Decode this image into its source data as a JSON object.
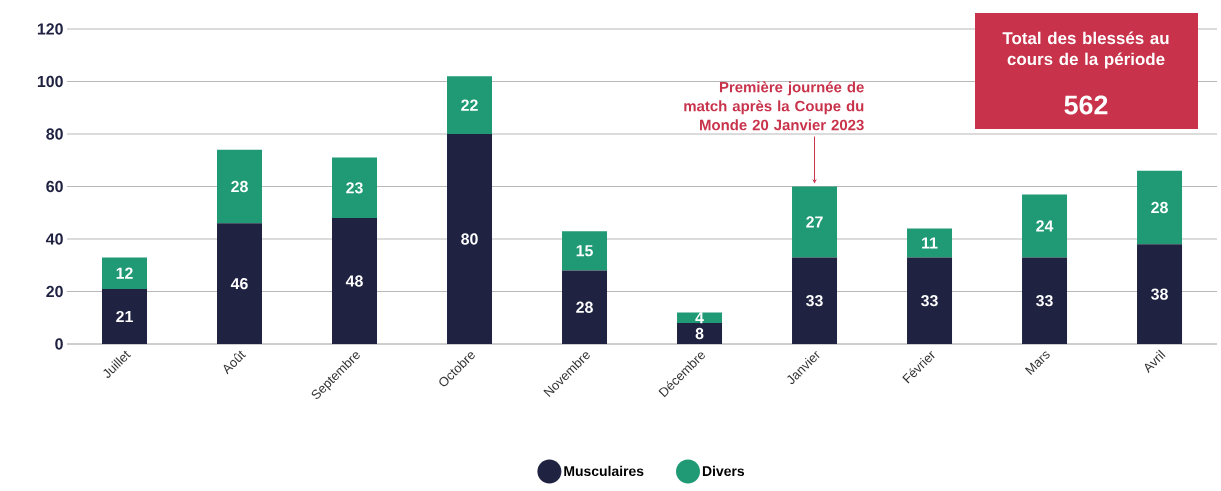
{
  "chart_data": {
    "type": "bar",
    "stacked": true,
    "categories": [
      "Juillet",
      "Août",
      "Septembre",
      "Octobre",
      "Novembre",
      "Décembre",
      "Janvier",
      "Février",
      "Mars",
      "Avril"
    ],
    "series": [
      {
        "name": "Musculaires",
        "color": "#1f2341",
        "values": [
          21,
          46,
          48,
          80,
          28,
          8,
          33,
          33,
          33,
          38
        ]
      },
      {
        "name": "Divers",
        "color": "#1f9a74",
        "values": [
          12,
          28,
          23,
          22,
          15,
          4,
          27,
          11,
          24,
          28
        ]
      }
    ],
    "ylim": [
      0,
      120
    ],
    "yticks": [
      0,
      20,
      40,
      60,
      80,
      100,
      120
    ],
    "grid": "y",
    "legend": "bottom",
    "data_labels": true,
    "annotations": [
      {
        "text": "Première journée de match après la Coupe du Monde 20 Janvier 2023",
        "x": "Janvier",
        "y": 60
      },
      "Total des blessés au cours de la période",
      "562"
    ]
  }
}
